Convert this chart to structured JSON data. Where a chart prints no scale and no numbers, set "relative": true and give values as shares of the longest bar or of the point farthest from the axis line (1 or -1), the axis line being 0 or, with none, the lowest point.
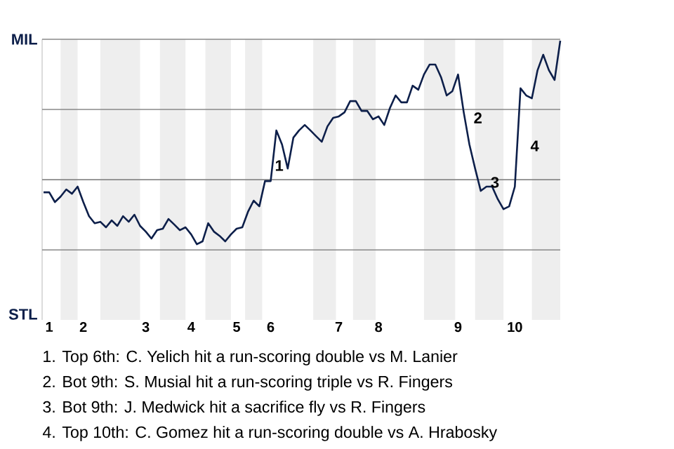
{
  "chart_data": {
    "type": "line",
    "relative": true,
    "categories": [
      null,
      "1",
      null,
      null,
      null,
      null,
      null,
      "2",
      null,
      null,
      null,
      null,
      null,
      null,
      null,
      null,
      null,
      null,
      "3",
      null,
      null,
      null,
      null,
      null,
      null,
      null,
      "4",
      null,
      null,
      null,
      null,
      null,
      null,
      null,
      "5",
      null,
      null,
      null,
      null,
      null,
      "6",
      null,
      null,
      null,
      null,
      null,
      null,
      null,
      null,
      null,
      null,
      null,
      "7",
      null,
      null,
      null,
      null,
      null,
      null,
      "8",
      null,
      null,
      null,
      null,
      null,
      null,
      null,
      null,
      null,
      null,
      null,
      null,
      null,
      "9",
      null,
      null,
      null,
      null,
      null,
      null,
      null,
      null,
      null,
      "10",
      null,
      null,
      null,
      null,
      null,
      null,
      null,
      null
    ],
    "values": [
      0.255,
      0.255,
      0.207,
      0.234,
      0.269,
      0.248,
      0.283,
      0.207,
      0.138,
      0.103,
      0.11,
      0.083,
      0.117,
      0.09,
      0.138,
      0.11,
      0.145,
      0.09,
      0.062,
      0.028,
      0.069,
      0.076,
      0.124,
      0.097,
      0.069,
      0.083,
      0.048,
      0,
      0.014,
      0.103,
      0.062,
      0.041,
      0.014,
      0.048,
      0.076,
      0.083,
      0.159,
      0.214,
      0.186,
      0.31,
      0.31,
      0.559,
      0.49,
      0.372,
      0.524,
      0.559,
      0.586,
      0.559,
      0.531,
      0.503,
      0.579,
      0.621,
      0.628,
      0.648,
      0.703,
      0.703,
      0.655,
      0.655,
      0.614,
      0.628,
      0.586,
      0.669,
      0.731,
      0.697,
      0.697,
      0.779,
      0.759,
      0.834,
      0.883,
      0.883,
      0.821,
      0.731,
      0.752,
      0.834,
      0.648,
      0.49,
      0.372,
      0.262,
      0.283,
      0.283,
      0.221,
      0.172,
      0.186,
      0.283,
      0.766,
      0.731,
      0.717,
      0.855,
      0.931,
      0.855,
      0.807,
      1
    ],
    "color": "#0d1f4a",
    "ref_lines": [
      {
        "axis": "y",
        "value": -0.028,
        "color": "#888888"
      },
      {
        "axis": "y",
        "value": 0.317,
        "color": "#888888"
      },
      {
        "axis": "y",
        "value": 0.662,
        "color": "#888888"
      },
      {
        "axis": "y",
        "value": 1.007,
        "color": "#888888"
      }
    ],
    "annotations": [
      "1",
      "2",
      "3",
      "4",
      "MIL",
      "STL",
      "1. Top 6th: C. Yelich hit a run-scoring double vs M. Lanier",
      "2. Bot 9th: S. Musial hit a run-scoring triple vs R. Fingers",
      "3. Bot 9th: J. Medwick hit a sacrifice fly vs R. Fingers",
      "4. Top 10th: C. Gomez hit a run-scoring double vs A. Hrabosky"
    ]
  }
}
